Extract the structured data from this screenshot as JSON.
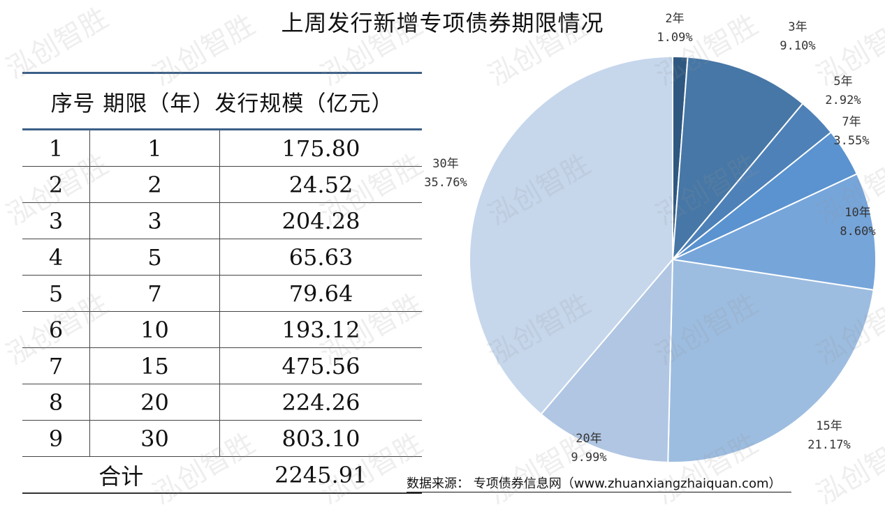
{
  "title": "上周发行新增专项债券期限情况",
  "table": {
    "headers": [
      "序号",
      "期限（年）",
      "发行规模（亿元）"
    ],
    "rows": [
      [
        "1",
        "1",
        "175.80"
      ],
      [
        "2",
        "2",
        "24.52"
      ],
      [
        "3",
        "3",
        "204.28"
      ],
      [
        "4",
        "5",
        "65.63"
      ],
      [
        "5",
        "7",
        "79.64"
      ],
      [
        "6",
        "10",
        "193.12"
      ],
      [
        "7",
        "15",
        "475.56"
      ],
      [
        "8",
        "20",
        "224.26"
      ],
      [
        "9",
        "30",
        "803.10"
      ]
    ],
    "total_label": "合计",
    "total_value": "2245.91"
  },
  "chart_data": {
    "type": "pie",
    "title": "上周发行新增专项债券期限情况",
    "slices": [
      {
        "label": "2年",
        "percent": 1.09,
        "percent_text": "1.09%",
        "color": "#2f5880"
      },
      {
        "label": "3年",
        "percent": 9.1,
        "percent_text": "9.10%",
        "color": "#4677a6"
      },
      {
        "label": "5年",
        "percent": 2.92,
        "percent_text": "2.92%",
        "color": "#4e81b8"
      },
      {
        "label": "7年",
        "percent": 3.55,
        "percent_text": "3.55%",
        "color": "#5a93cf"
      },
      {
        "label": "10年",
        "percent": 8.6,
        "percent_text": "8.60%",
        "color": "#76a5da"
      },
      {
        "label": "15年",
        "percent": 21.17,
        "percent_text": "21.17%",
        "color": "#9dbde0"
      },
      {
        "label": "20年",
        "percent": 9.99,
        "percent_text": "9.99%",
        "color": "#b0c6e3"
      },
      {
        "label": "30年",
        "percent": 35.76,
        "percent_text": "35.76%",
        "color": "#c6d7ec"
      }
    ]
  },
  "source": "数据来源：  专项债券信息网（www.zhuanxiangzhaiquan.com）",
  "watermark": "泓创智胜"
}
